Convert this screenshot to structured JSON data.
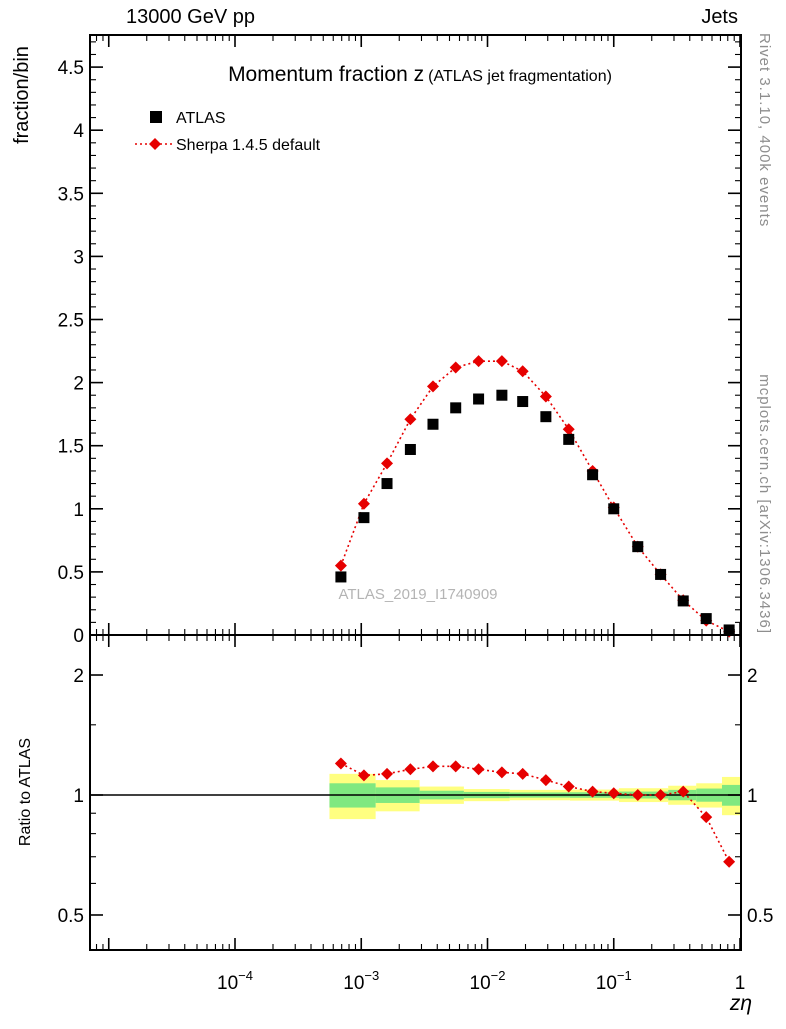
{
  "header": {
    "left": "13000 GeV pp",
    "right": "Jets"
  },
  "side_notes": {
    "top_right": "Rivet 3.1.10,  400k events",
    "bottom_right": "mcplots.cern.ch [arXiv:1306.3436]"
  },
  "watermark": "ATLAS_2019_I1740909",
  "colors": {
    "band_outer": "#ffff80",
    "band_inner": "#80e880",
    "atlas": "#000000",
    "sherpa": "#e60000",
    "reference_line": "#000000"
  },
  "chart_data": {
    "type": "scatter",
    "title": "Momentum fraction z",
    "subtitle": "(ATLAS jet fragmentation)",
    "xlabel": "zη",
    "ylabel": "fraction/bin",
    "ratio_ylabel": "Ratio to ATLAS",
    "x": [
      0.00069,
      0.00105,
      0.0016,
      0.00245,
      0.0037,
      0.0056,
      0.0085,
      0.013,
      0.019,
      0.029,
      0.044,
      0.068,
      0.1,
      0.155,
      0.235,
      0.355,
      0.54,
      0.82
    ],
    "series": [
      {
        "name": "ATLAS",
        "marker": "square",
        "color": "#000000",
        "line": "none",
        "values": [
          0.46,
          0.93,
          1.2,
          1.47,
          1.67,
          1.8,
          1.87,
          1.9,
          1.85,
          1.73,
          1.55,
          1.27,
          1.0,
          0.7,
          0.48,
          0.27,
          0.13,
          0.04
        ]
      },
      {
        "name": "Sherpa 1.4.5 default",
        "marker": "diamond",
        "color": "#e60000",
        "line": "dotted",
        "values": [
          0.55,
          1.04,
          1.36,
          1.71,
          1.97,
          2.12,
          2.17,
          2.17,
          2.09,
          1.89,
          1.63,
          1.3,
          1.01,
          0.7,
          0.48,
          0.275,
          0.114,
          0.027
        ]
      }
    ],
    "ratio": {
      "name": "Sherpa/ATLAS",
      "values": [
        1.2,
        1.12,
        1.13,
        1.16,
        1.18,
        1.18,
        1.16,
        1.14,
        1.13,
        1.09,
        1.05,
        1.02,
        1.01,
        1.0,
        1.0,
        1.02,
        0.88,
        0.68
      ]
    },
    "ratio_bands": [
      {
        "x0": 0.00056,
        "x1": 0.0013,
        "yellow": [
          0.87,
          1.13
        ],
        "green": [
          0.93,
          1.07
        ]
      },
      {
        "x0": 0.0013,
        "x1": 0.0029,
        "yellow": [
          0.91,
          1.09
        ],
        "green": [
          0.955,
          1.045
        ]
      },
      {
        "x0": 0.0029,
        "x1": 0.0065,
        "yellow": [
          0.95,
          1.05
        ],
        "green": [
          0.975,
          1.025
        ]
      },
      {
        "x0": 0.0065,
        "x1": 0.015,
        "yellow": [
          0.965,
          1.035
        ],
        "green": [
          0.982,
          1.018
        ]
      },
      {
        "x0": 0.015,
        "x1": 0.045,
        "yellow": [
          0.97,
          1.03
        ],
        "green": [
          0.985,
          1.015
        ]
      },
      {
        "x0": 0.045,
        "x1": 0.11,
        "yellow": [
          0.968,
          1.032
        ],
        "green": [
          0.984,
          1.016
        ]
      },
      {
        "x0": 0.11,
        "x1": 0.27,
        "yellow": [
          0.96,
          1.04
        ],
        "green": [
          0.98,
          1.02
        ]
      },
      {
        "x0": 0.27,
        "x1": 0.45,
        "yellow": [
          0.945,
          1.055
        ],
        "green": [
          0.97,
          1.03
        ]
      },
      {
        "x0": 0.45,
        "x1": 0.72,
        "yellow": [
          0.93,
          1.07
        ],
        "green": [
          0.962,
          1.038
        ]
      },
      {
        "x0": 0.72,
        "x1": 1.0,
        "yellow": [
          0.89,
          1.11
        ],
        "green": [
          0.94,
          1.06
        ]
      }
    ],
    "x_axis": {
      "scale": "log",
      "min": 7.1e-06,
      "max": 1.02,
      "major_ticks": [
        {
          "v": 1e-05,
          "label": ""
        },
        {
          "v": 0.0001,
          "base": "10",
          "exp": "−4"
        },
        {
          "v": 0.001,
          "base": "10",
          "exp": "−3"
        },
        {
          "v": 0.01,
          "base": "10",
          "exp": "−2"
        },
        {
          "v": 0.1,
          "base": "10",
          "exp": "−1"
        },
        {
          "v": 1,
          "label": "1"
        }
      ]
    },
    "y_main_axis": {
      "scale": "linear",
      "min": 0,
      "max": 4.75,
      "ticks": [
        {
          "v": 0,
          "label": "0"
        },
        {
          "v": 0.5,
          "label": "0.5"
        },
        {
          "v": 1,
          "label": "1"
        },
        {
          "v": 1.5,
          "label": "1.5"
        },
        {
          "v": 2,
          "label": "2"
        },
        {
          "v": 2.5,
          "label": "2.5"
        },
        {
          "v": 3,
          "label": "3"
        },
        {
          "v": 3.5,
          "label": "3.5"
        },
        {
          "v": 4,
          "label": "4"
        },
        {
          "v": 4.5,
          "label": "4.5"
        }
      ],
      "minor_step": 0.1
    },
    "y_ratio_axis": {
      "scale": "log",
      "min": 0.41,
      "max": 2.52,
      "ticks": [
        {
          "v": 0.5,
          "label": "0.5"
        },
        {
          "v": 1,
          "label": "1"
        },
        {
          "v": 2,
          "label": "2"
        }
      ],
      "minor_ticks": [
        0.6,
        0.7,
        0.8,
        0.9,
        1.5
      ]
    },
    "legend_position": "top-left"
  }
}
